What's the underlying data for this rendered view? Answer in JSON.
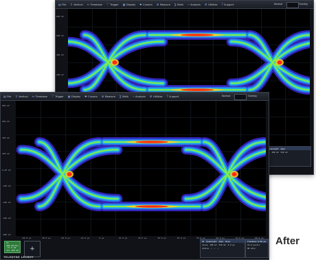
{
  "menu": [
    {
      "icon": "file-icon",
      "label": "File"
    },
    {
      "icon": "vertical-icon",
      "label": "Vertical"
    },
    {
      "icon": "timebase-icon",
      "label": "Timebase"
    },
    {
      "icon": "trigger-icon",
      "label": "Trigger"
    },
    {
      "icon": "display-icon",
      "label": "Display"
    },
    {
      "icon": "cursors-icon",
      "label": "Cursors"
    },
    {
      "icon": "measure-icon",
      "label": "Measure"
    },
    {
      "icon": "math-icon",
      "label": "Math"
    },
    {
      "icon": "analysis-icon",
      "label": "Analysis"
    },
    {
      "icon": "utilities-icon",
      "label": "Utilities"
    },
    {
      "icon": "support-icon",
      "label": "Support"
    }
  ],
  "trigger_mode": "Normal",
  "display_mode": "Overlay",
  "after_label": "After",
  "brand": "TELEDYNE LECROY",
  "front_y_ticks": [
    "800 mV",
    "600 mV",
    "400 mV",
    "200 mV",
    "0.00 mV",
    "-200 mV",
    "-400 mV",
    "-600 mV",
    "-800 mV"
  ],
  "front_x_ticks": [
    "-40.0 ps",
    "-30.0 ps",
    "-20.0 ps",
    "-10.0 ps",
    "0 ps",
    "10.0 ps",
    "20.0 ps",
    "30.0 ps",
    "40.0 ps",
    "50.0 ps",
    "60.0 ps",
    "70.0 ps",
    "80.0 ps"
  ],
  "back_y_ticks": [
    "800 mV",
    "600 mV",
    "400 mV",
    "200 mV",
    "0.00 mV",
    "-200 mV",
    "-400 mV"
  ],
  "channel_badge": {
    "name": "C1",
    "line1": "200 mV/div",
    "line2": "-37.5 mV",
    "line3": "ofs 155 mV"
  },
  "meas_panel": {
    "header": [
      "P1",
      "Eyeheight",
      "Ampl",
      "Rise"
    ],
    "row1": [
      "value",
      "380 mV",
      "530 mV",
      "9.8 ps"
    ],
    "row2": [
      "status",
      "✓",
      "✓",
      "✓"
    ]
  },
  "timebase_panel": {
    "line1": "Timebase 0.00 ps",
    "line2": "10.0 ps/div",
    "line3": "80 GS/s"
  },
  "colors": {
    "accent": "#8fb4ff",
    "eye_outer": "#3a2bd6",
    "eye_mid": "#21c6e0",
    "eye_hot": "#ff2a14"
  }
}
